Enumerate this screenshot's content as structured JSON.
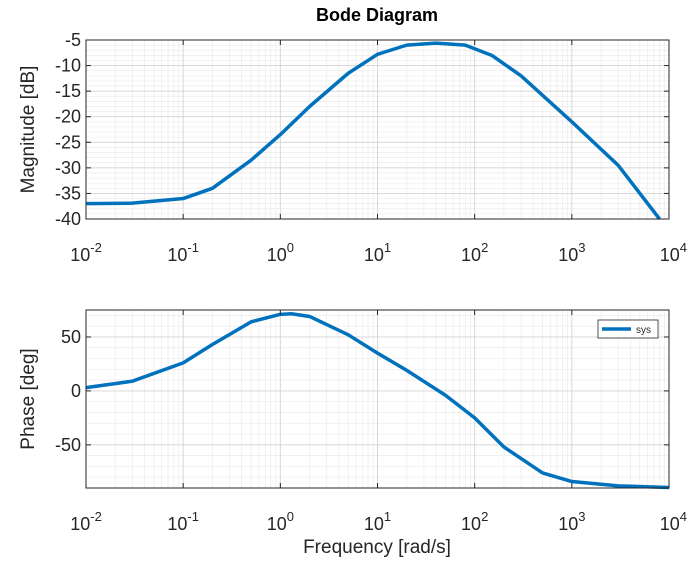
{
  "chart_data": {
    "type": "line",
    "title": "Bode Diagram",
    "xlabel": "Frequency [rad/s]",
    "xscale": "log",
    "xlim": [
      0.01,
      10000
    ],
    "x_ticks": [
      0.01,
      0.1,
      1,
      10,
      100,
      1000,
      10000
    ],
    "x_tick_labels": [
      {
        "base": "10",
        "exp": "-2"
      },
      {
        "base": "10",
        "exp": "-1"
      },
      {
        "base": "10",
        "exp": "0"
      },
      {
        "base": "10",
        "exp": "1"
      },
      {
        "base": "10",
        "exp": "2"
      },
      {
        "base": "10",
        "exp": "3"
      },
      {
        "base": "10",
        "exp": "4"
      }
    ],
    "grid": true,
    "line_color": "#0072bd",
    "panels": [
      {
        "ylabel": "Magnitude [dB]",
        "ylim": [
          -40,
          -5
        ],
        "y_ticks": [
          -5,
          -10,
          -15,
          -20,
          -25,
          -30,
          -35,
          -40
        ],
        "y_tick_labels": [
          "-5",
          "-10",
          "-15",
          "-20",
          "-25",
          "-30",
          "-35",
          "-40"
        ],
        "series": [
          {
            "x": [
              0.01,
              0.03,
              0.1,
              0.2,
              0.5,
              1,
              2,
              5,
              10,
              20,
              40,
              80,
              150,
              300,
              1000,
              3000,
              8000
            ],
            "y": [
              -37,
              -36.9,
              -36,
              -34,
              -28.5,
              -23.5,
              -18,
              -11.5,
              -7.8,
              -6,
              -5.6,
              -6,
              -8,
              -12,
              -21,
              -29.5,
              -40
            ]
          }
        ]
      },
      {
        "ylabel": "Phase [deg]",
        "ylim": [
          -90,
          75
        ],
        "y_ticks": [
          50,
          0,
          -50
        ],
        "y_tick_labels": [
          "50",
          "0",
          "-50"
        ],
        "legend": {
          "position": "top-right"
        },
        "series": [
          {
            "name": "sys",
            "x": [
              0.01,
              0.03,
              0.1,
              0.2,
              0.5,
              1,
              1.3,
              2,
              5,
              10,
              20,
              50,
              100,
              200,
              500,
              1000,
              3000,
              10000
            ],
            "y": [
              3,
              9,
              26,
              43,
              64,
              71,
              71.5,
              69,
              52,
              35,
              19,
              -4,
              -25,
              -52,
              -76,
              -84,
              -88,
              -89.5
            ]
          }
        ]
      }
    ]
  }
}
